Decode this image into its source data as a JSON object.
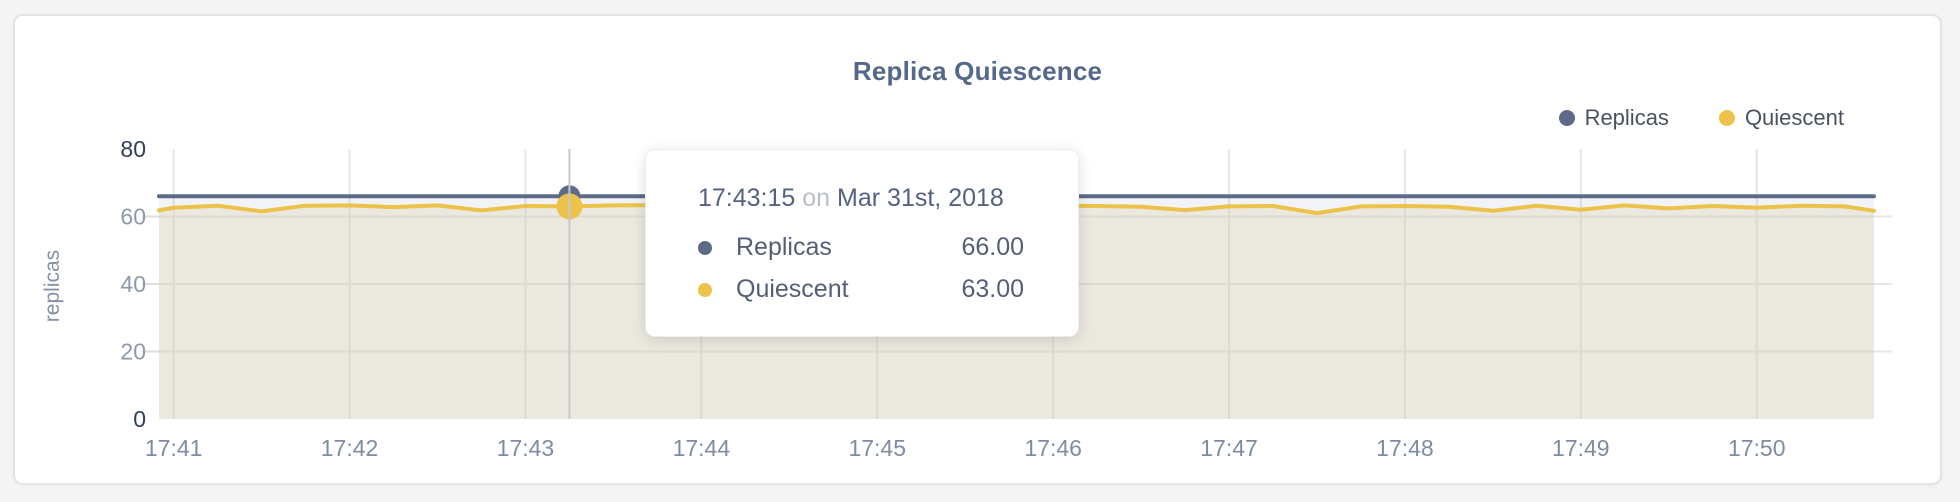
{
  "panel": {
    "title": "Replica Quiescence"
  },
  "legend": {
    "items": [
      {
        "label": "Replicas",
        "color": "#5d6b88"
      },
      {
        "label": "Quiescent",
        "color": "#ecc24a"
      }
    ]
  },
  "tooltip": {
    "time": "17:43:15",
    "connector": "on",
    "date": "Mar 31st, 2018",
    "rows": [
      {
        "label": "Replicas",
        "value": "66.00",
        "color": "#5d6b88"
      },
      {
        "label": "Quiescent",
        "value": "63.00",
        "color": "#ecc24a"
      }
    ]
  },
  "chart_data": {
    "type": "area",
    "title": "Replica Quiescence",
    "xlabel": "",
    "ylabel": "replicas",
    "ylim": [
      0,
      80
    ],
    "yticks": [
      0,
      20,
      40,
      60,
      80
    ],
    "xticks": [
      "17:41",
      "17:42",
      "17:43",
      "17:44",
      "17:45",
      "17:46",
      "17:47",
      "17:48",
      "17:49",
      "17:50"
    ],
    "x_domain": [
      "17:40:55",
      "17:50:40"
    ],
    "grid": true,
    "legend_position": "top-right",
    "x": [
      "17:40:55",
      "17:41:00",
      "17:41:15",
      "17:41:30",
      "17:41:45",
      "17:42:00",
      "17:42:15",
      "17:42:30",
      "17:42:45",
      "17:43:00",
      "17:43:15",
      "17:43:30",
      "17:43:45",
      "17:44:00",
      "17:44:15",
      "17:44:30",
      "17:44:45",
      "17:45:00",
      "17:45:15",
      "17:45:30",
      "17:45:45",
      "17:46:00",
      "17:46:15",
      "17:46:30",
      "17:46:45",
      "17:47:00",
      "17:47:15",
      "17:47:30",
      "17:47:45",
      "17:48:00",
      "17:48:15",
      "17:48:30",
      "17:48:45",
      "17:49:00",
      "17:49:15",
      "17:49:30",
      "17:49:45",
      "17:50:00",
      "17:50:15",
      "17:50:30",
      "17:50:40"
    ],
    "series": [
      {
        "name": "Replicas",
        "color": "#5d6b88",
        "fill": "rgba(93,107,136,0.08)",
        "values": [
          66,
          66,
          66,
          66,
          66,
          66,
          66,
          66,
          66,
          66,
          66,
          66,
          66,
          66,
          66,
          66,
          66,
          66,
          66,
          66,
          66,
          66,
          66,
          66,
          66,
          66,
          66,
          66,
          66,
          66,
          66,
          66,
          66,
          66,
          66,
          66,
          66,
          66,
          66,
          66,
          66
        ]
      },
      {
        "name": "Quiescent",
        "color": "#ecc24a",
        "fill": "rgba(225,215,190,0.40)",
        "values": [
          61.8,
          62.6,
          63.2,
          61.5,
          63.2,
          63.3,
          62.8,
          63.3,
          61.8,
          63.1,
          63.0,
          63.3,
          63.4,
          63.2,
          63.0,
          63.3,
          62.7,
          63.2,
          63.0,
          63.3,
          62.5,
          63.2,
          63.1,
          62.9,
          61.9,
          63.0,
          63.1,
          61.0,
          63.0,
          63.1,
          62.9,
          61.7,
          63.2,
          62.0,
          63.3,
          62.4,
          63.1,
          62.6,
          63.2,
          63.0,
          61.7
        ]
      }
    ],
    "selected_index": 10,
    "selected_values": {
      "Replicas": 66.0,
      "Quiescent": 63.0
    }
  },
  "colors": {
    "grid": "#e7e7e7",
    "tick": "#dedede",
    "crosshair": "#c6c8cb",
    "card_border": "#e4e4e6",
    "page_bg": "#f4f4f5"
  }
}
